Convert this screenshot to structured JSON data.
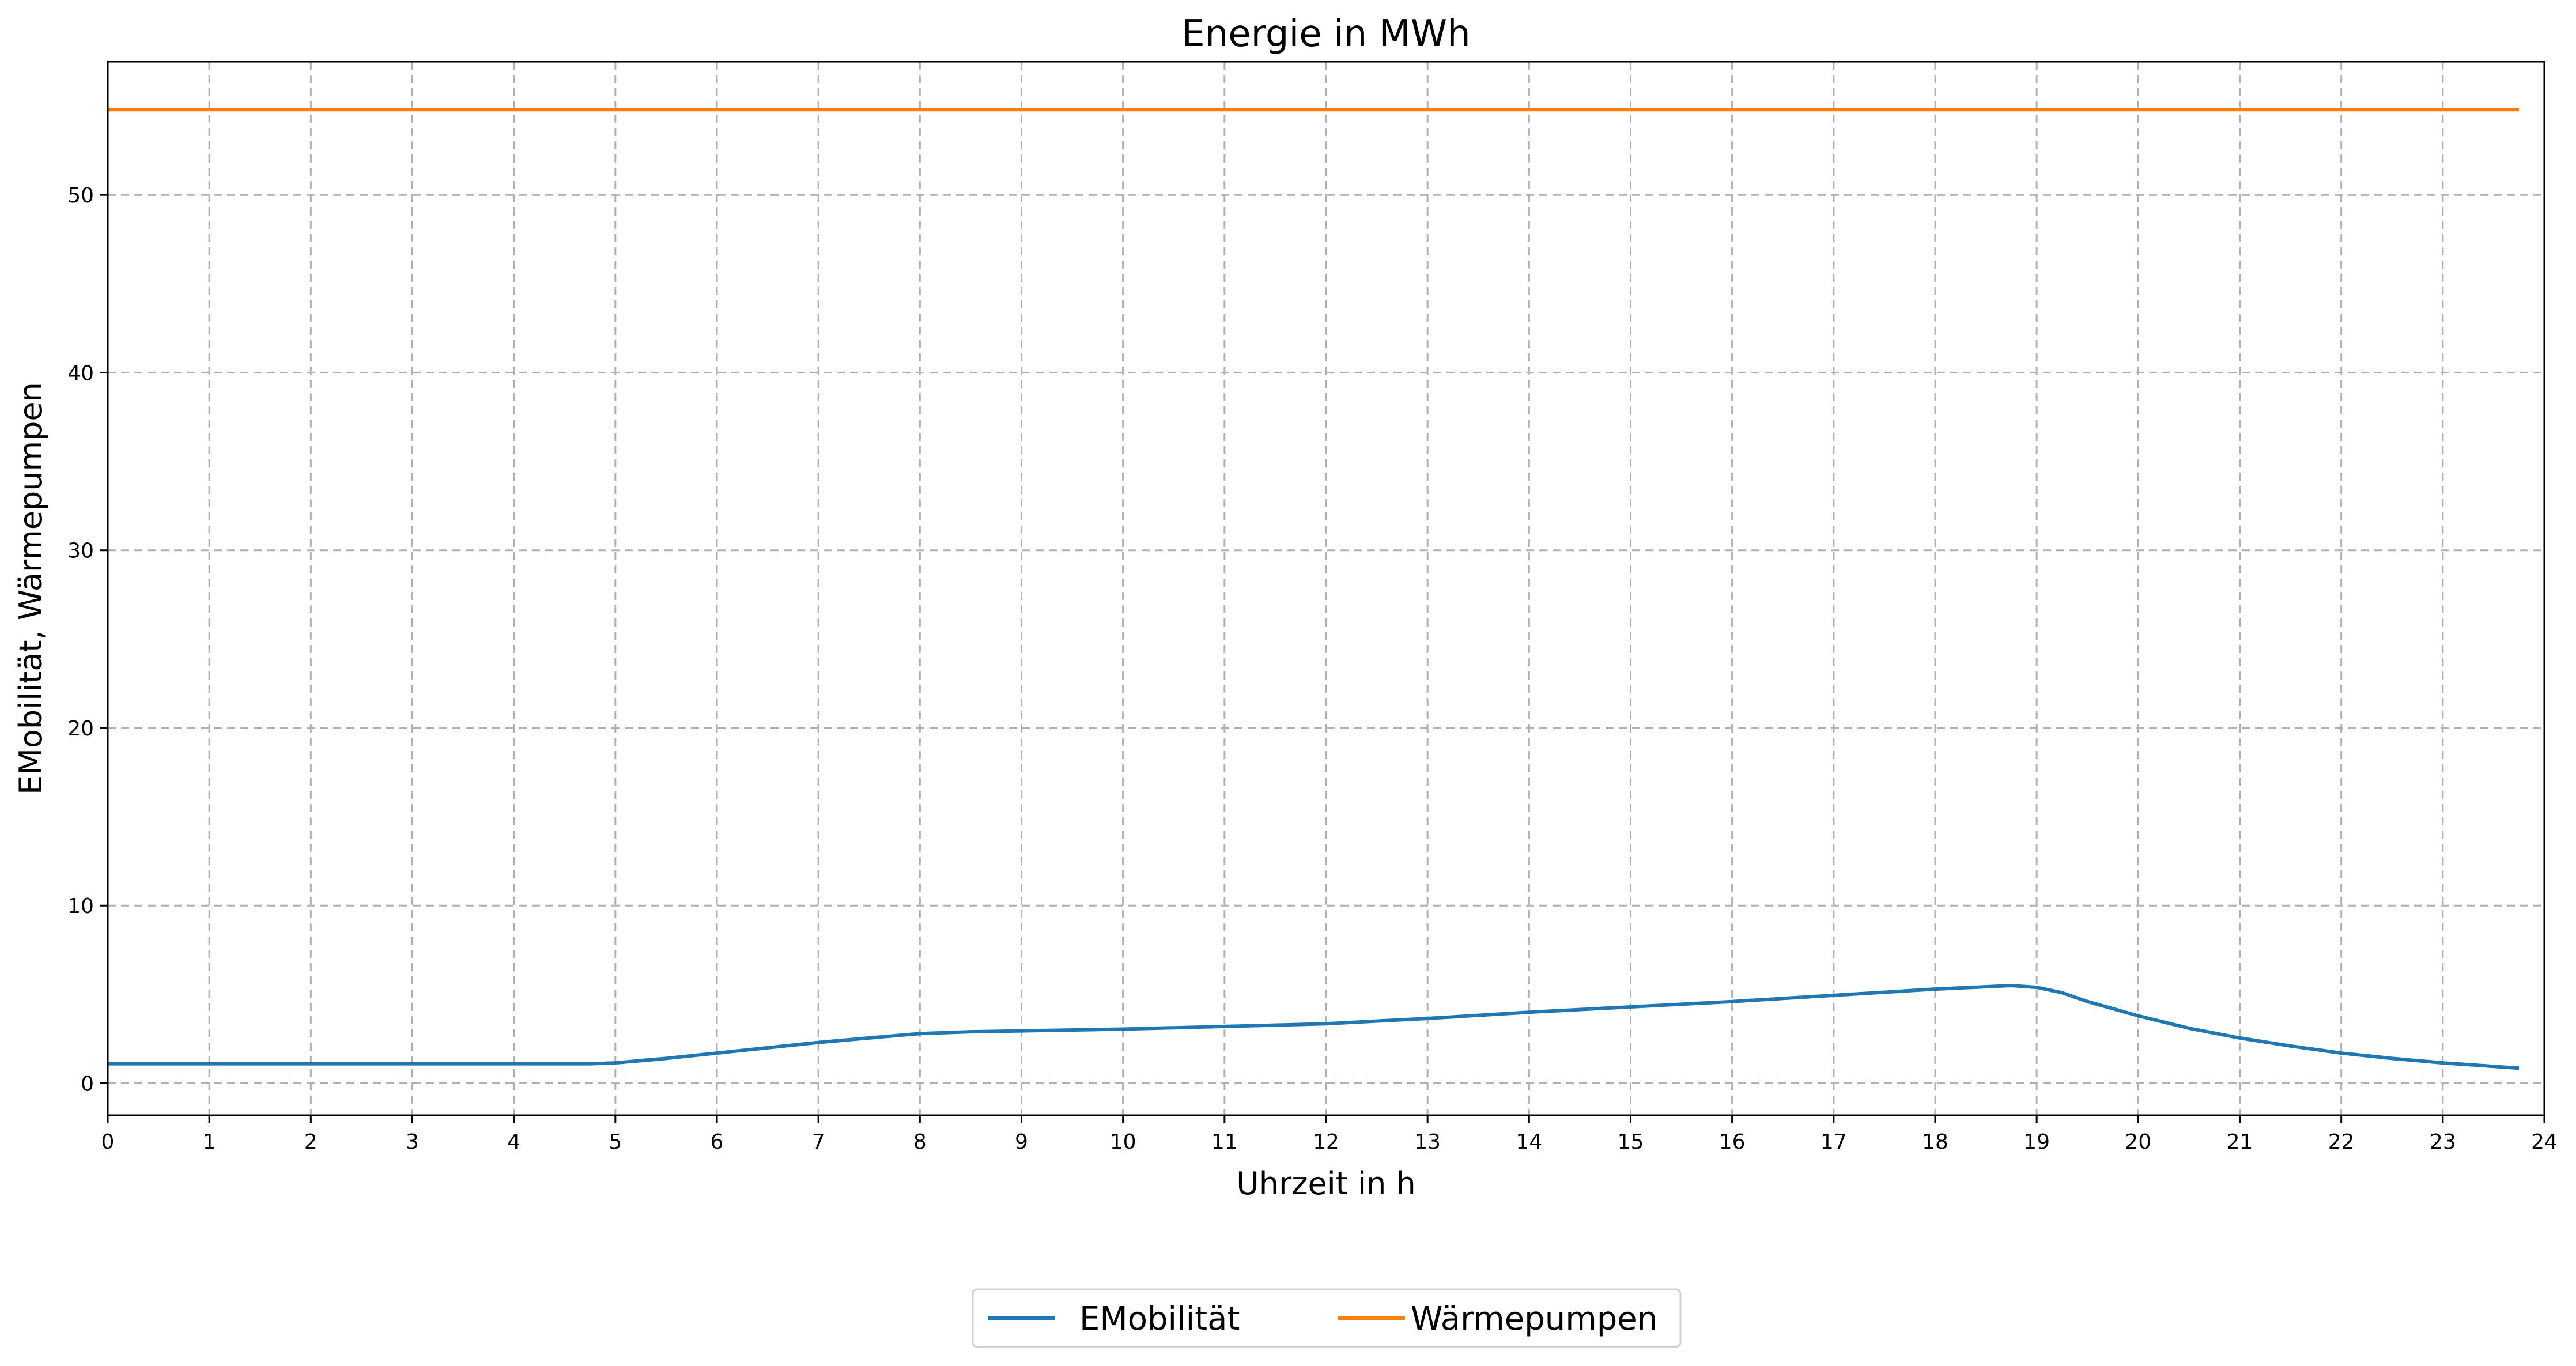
{
  "chart_data": {
    "type": "line",
    "title": "Energie in MWh",
    "xlabel": "Uhrzeit in h",
    "ylabel": "EMobilität, Wärmepumpen",
    "xlim": [
      0,
      24
    ],
    "ylim": [
      -1.8,
      57.5
    ],
    "xticks": [
      0,
      1,
      2,
      3,
      4,
      5,
      6,
      7,
      8,
      9,
      10,
      11,
      12,
      13,
      14,
      15,
      16,
      17,
      18,
      19,
      20,
      21,
      22,
      23,
      24
    ],
    "yticks": [
      0,
      10,
      20,
      30,
      40,
      50
    ],
    "grid": true,
    "legend_position": "bottom-center",
    "series": [
      {
        "name": "EMobilität",
        "color": "#1f77b4",
        "x": [
          0,
          1,
          2,
          3,
          4,
          4.75,
          5,
          5.5,
          6,
          6.5,
          7,
          7.5,
          8,
          8.5,
          9,
          10,
          11,
          12,
          13,
          14,
          15,
          16,
          17,
          18,
          18.75,
          19,
          19.25,
          19.5,
          20,
          20.5,
          21,
          21.5,
          22,
          22.5,
          23,
          23.5,
          23.75
        ],
        "y": [
          1.1,
          1.1,
          1.1,
          1.1,
          1.1,
          1.1,
          1.15,
          1.4,
          1.7,
          2.0,
          2.3,
          2.55,
          2.8,
          2.9,
          2.95,
          3.05,
          3.2,
          3.35,
          3.65,
          4.0,
          4.3,
          4.6,
          4.95,
          5.3,
          5.5,
          5.4,
          5.1,
          4.6,
          3.8,
          3.1,
          2.55,
          2.1,
          1.7,
          1.4,
          1.15,
          0.95,
          0.85
        ]
      },
      {
        "name": "Wärmepumpen",
        "color": "#ff7f0e",
        "x": [
          0,
          23.75
        ],
        "y": [
          54.8,
          54.8
        ]
      }
    ]
  }
}
